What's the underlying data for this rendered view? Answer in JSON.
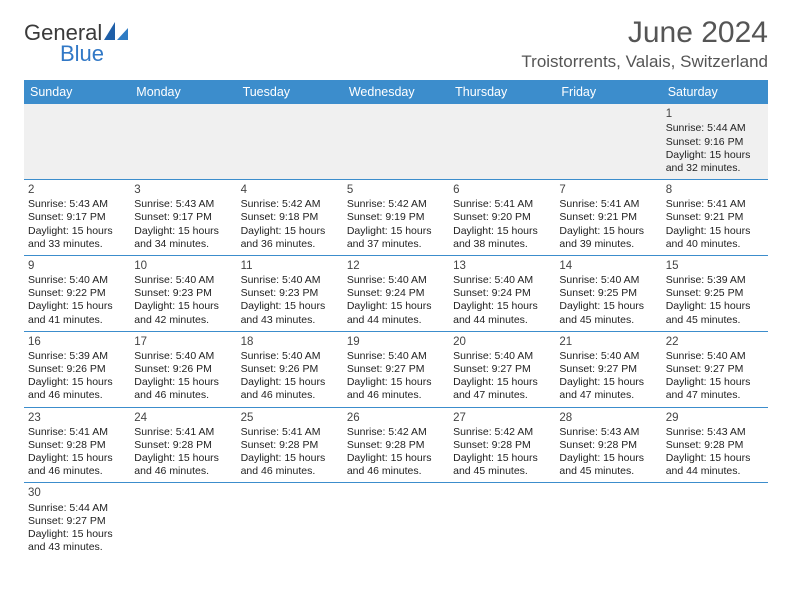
{
  "brand": {
    "general": "General",
    "blue": "Blue"
  },
  "title": "June 2024",
  "location": "Troistorrents, Valais, Switzerland",
  "colors": {
    "header_bg": "#3c8dcc",
    "header_fg": "#ffffff",
    "row0_bg": "#f0f0f0",
    "border": "#3c8dcc",
    "title_fg": "#555555",
    "logo_blue": "#3178c6",
    "logo_dark": "#3a3a3a"
  },
  "fonts": {
    "title_size": 30,
    "location_size": 17,
    "th_size": 12.5,
    "cell_size": 10.5
  },
  "weekday_labels": [
    "Sunday",
    "Monday",
    "Tuesday",
    "Wednesday",
    "Thursday",
    "Friday",
    "Saturday"
  ],
  "labels": {
    "sunrise": "Sunrise:",
    "sunset": "Sunset:",
    "daylight": "Daylight:"
  },
  "weeks": [
    [
      null,
      null,
      null,
      null,
      null,
      null,
      {
        "n": "1",
        "sr": "5:44 AM",
        "ss": "9:16 PM",
        "dl": "15 hours and 32 minutes."
      }
    ],
    [
      {
        "n": "2",
        "sr": "5:43 AM",
        "ss": "9:17 PM",
        "dl": "15 hours and 33 minutes."
      },
      {
        "n": "3",
        "sr": "5:43 AM",
        "ss": "9:17 PM",
        "dl": "15 hours and 34 minutes."
      },
      {
        "n": "4",
        "sr": "5:42 AM",
        "ss": "9:18 PM",
        "dl": "15 hours and 36 minutes."
      },
      {
        "n": "5",
        "sr": "5:42 AM",
        "ss": "9:19 PM",
        "dl": "15 hours and 37 minutes."
      },
      {
        "n": "6",
        "sr": "5:41 AM",
        "ss": "9:20 PM",
        "dl": "15 hours and 38 minutes."
      },
      {
        "n": "7",
        "sr": "5:41 AM",
        "ss": "9:21 PM",
        "dl": "15 hours and 39 minutes."
      },
      {
        "n": "8",
        "sr": "5:41 AM",
        "ss": "9:21 PM",
        "dl": "15 hours and 40 minutes."
      }
    ],
    [
      {
        "n": "9",
        "sr": "5:40 AM",
        "ss": "9:22 PM",
        "dl": "15 hours and 41 minutes."
      },
      {
        "n": "10",
        "sr": "5:40 AM",
        "ss": "9:23 PM",
        "dl": "15 hours and 42 minutes."
      },
      {
        "n": "11",
        "sr": "5:40 AM",
        "ss": "9:23 PM",
        "dl": "15 hours and 43 minutes."
      },
      {
        "n": "12",
        "sr": "5:40 AM",
        "ss": "9:24 PM",
        "dl": "15 hours and 44 minutes."
      },
      {
        "n": "13",
        "sr": "5:40 AM",
        "ss": "9:24 PM",
        "dl": "15 hours and 44 minutes."
      },
      {
        "n": "14",
        "sr": "5:40 AM",
        "ss": "9:25 PM",
        "dl": "15 hours and 45 minutes."
      },
      {
        "n": "15",
        "sr": "5:39 AM",
        "ss": "9:25 PM",
        "dl": "15 hours and 45 minutes."
      }
    ],
    [
      {
        "n": "16",
        "sr": "5:39 AM",
        "ss": "9:26 PM",
        "dl": "15 hours and 46 minutes."
      },
      {
        "n": "17",
        "sr": "5:40 AM",
        "ss": "9:26 PM",
        "dl": "15 hours and 46 minutes."
      },
      {
        "n": "18",
        "sr": "5:40 AM",
        "ss": "9:26 PM",
        "dl": "15 hours and 46 minutes."
      },
      {
        "n": "19",
        "sr": "5:40 AM",
        "ss": "9:27 PM",
        "dl": "15 hours and 46 minutes."
      },
      {
        "n": "20",
        "sr": "5:40 AM",
        "ss": "9:27 PM",
        "dl": "15 hours and 47 minutes."
      },
      {
        "n": "21",
        "sr": "5:40 AM",
        "ss": "9:27 PM",
        "dl": "15 hours and 47 minutes."
      },
      {
        "n": "22",
        "sr": "5:40 AM",
        "ss": "9:27 PM",
        "dl": "15 hours and 47 minutes."
      }
    ],
    [
      {
        "n": "23",
        "sr": "5:41 AM",
        "ss": "9:28 PM",
        "dl": "15 hours and 46 minutes."
      },
      {
        "n": "24",
        "sr": "5:41 AM",
        "ss": "9:28 PM",
        "dl": "15 hours and 46 minutes."
      },
      {
        "n": "25",
        "sr": "5:41 AM",
        "ss": "9:28 PM",
        "dl": "15 hours and 46 minutes."
      },
      {
        "n": "26",
        "sr": "5:42 AM",
        "ss": "9:28 PM",
        "dl": "15 hours and 46 minutes."
      },
      {
        "n": "27",
        "sr": "5:42 AM",
        "ss": "9:28 PM",
        "dl": "15 hours and 45 minutes."
      },
      {
        "n": "28",
        "sr": "5:43 AM",
        "ss": "9:28 PM",
        "dl": "15 hours and 45 minutes."
      },
      {
        "n": "29",
        "sr": "5:43 AM",
        "ss": "9:28 PM",
        "dl": "15 hours and 44 minutes."
      }
    ],
    [
      {
        "n": "30",
        "sr": "5:44 AM",
        "ss": "9:27 PM",
        "dl": "15 hours and 43 minutes."
      },
      null,
      null,
      null,
      null,
      null,
      null
    ]
  ]
}
